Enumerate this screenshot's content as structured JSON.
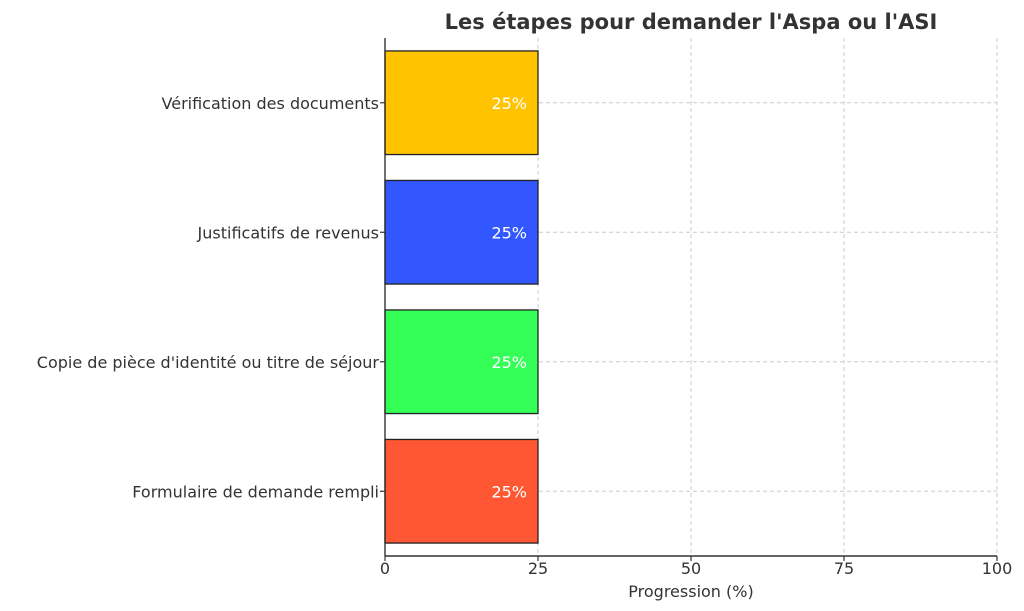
{
  "chart_data": {
    "type": "bar",
    "orientation": "horizontal",
    "title": "Les étapes pour demander l'Aspa ou l'ASI",
    "xlabel": "Progression (%)",
    "ylabel": "",
    "xlim": [
      0,
      100
    ],
    "xticks": [
      0,
      25,
      50,
      75,
      100
    ],
    "grid": true,
    "categories": [
      "Formulaire de demande rempli",
      "Copie de pièce d'identité ou titre de séjour",
      "Justificatifs de revenus",
      "Vérification des documents"
    ],
    "values": [
      25,
      25,
      25,
      25
    ],
    "value_labels": [
      "25%",
      "25%",
      "25%",
      "25%"
    ],
    "colors": [
      "#ff5733",
      "#33ff57",
      "#3357ff",
      "#ffc300"
    ]
  }
}
